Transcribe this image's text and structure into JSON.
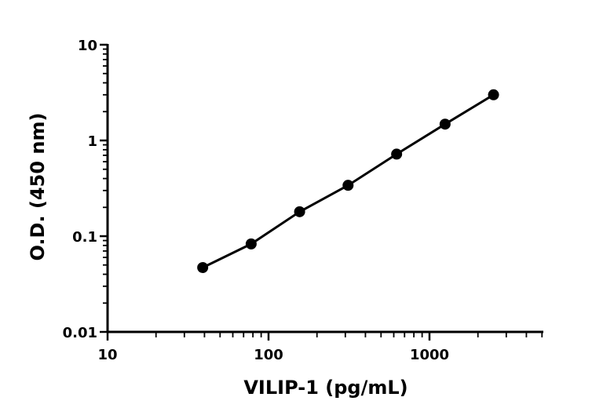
{
  "chart_data": {
    "type": "scatter",
    "xlabel": "VILIP-1 (pg/mL)",
    "ylabel": "O.D. (450 nm)",
    "x_scale": "log",
    "y_scale": "log",
    "xlim": [
      10,
      5000
    ],
    "ylim": [
      0.01,
      10
    ],
    "x_ticks": [
      {
        "value": 10,
        "label": "10"
      },
      {
        "value": 100,
        "label": "100"
      },
      {
        "value": 1000,
        "label": "1000"
      }
    ],
    "y_ticks": [
      {
        "value": 0.01,
        "label": "0.01"
      },
      {
        "value": 0.1,
        "label": "0.1"
      },
      {
        "value": 1,
        "label": "1"
      },
      {
        "value": 10,
        "label": "10"
      }
    ],
    "grid": false,
    "series": [
      {
        "x": [
          39,
          78,
          156,
          312,
          625,
          1250,
          2500
        ],
        "y": [
          0.047,
          0.083,
          0.18,
          0.34,
          0.72,
          1.48,
          3.0
        ],
        "color": "#000000",
        "fit_line": true
      }
    ]
  }
}
